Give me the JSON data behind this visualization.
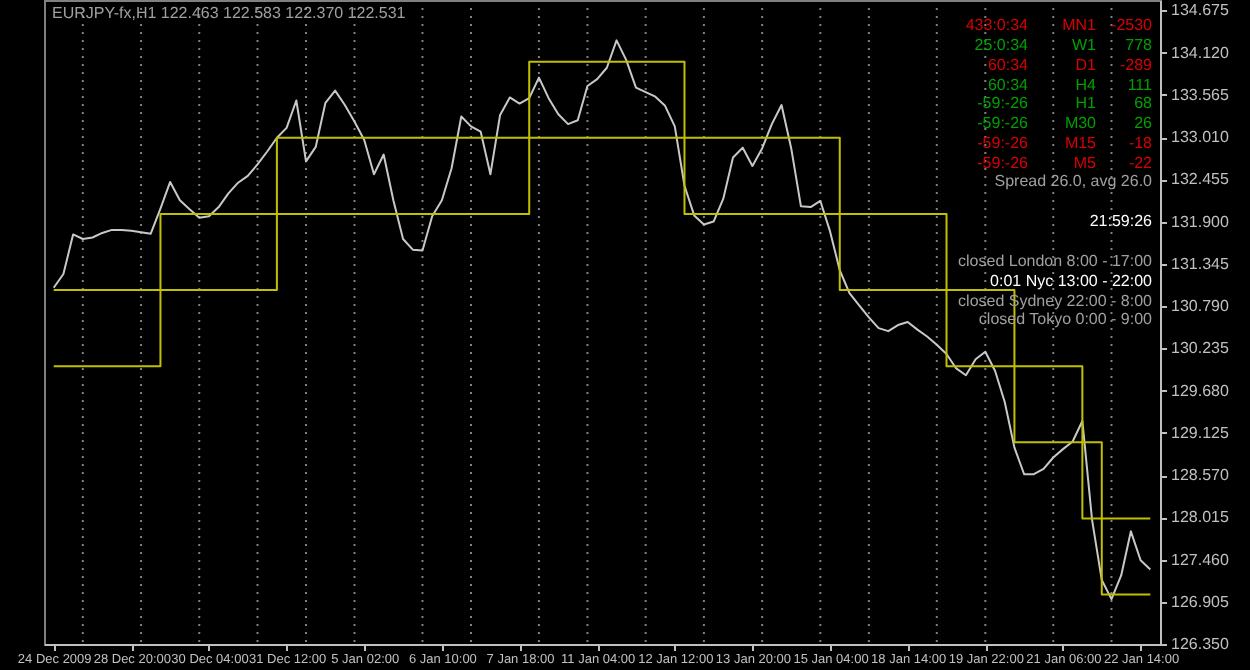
{
  "chart_data": {
    "type": "line",
    "title": "EURJPY-fx,H1 122.463 122.583 122.370 122.531",
    "categories": [
      "24 Dec 2009",
      null,
      null,
      null,
      null,
      null,
      null,
      null,
      "28 Dec 20:00",
      null,
      null,
      null,
      null,
      null,
      null,
      null,
      "30 Dec 04:00",
      null,
      null,
      null,
      null,
      null,
      null,
      null,
      "31 Dec 12:00",
      null,
      null,
      null,
      null,
      null,
      null,
      null,
      "5 Jan 02:00",
      null,
      null,
      null,
      null,
      null,
      null,
      null,
      "6 Jan 10:00",
      null,
      null,
      null,
      null,
      null,
      null,
      null,
      "7 Jan 18:00",
      null,
      null,
      null,
      null,
      null,
      null,
      null,
      "11 Jan 04:00",
      null,
      null,
      null,
      null,
      null,
      null,
      null,
      "12 Jan 12:00",
      null,
      null,
      null,
      null,
      null,
      null,
      null,
      "13 Jan 20:00",
      null,
      null,
      null,
      null,
      null,
      null,
      null,
      "15 Jan 04:00",
      null,
      null,
      null,
      null,
      null,
      null,
      null,
      "18 Jan 14:00",
      null,
      null,
      null,
      null,
      null,
      null,
      null,
      "19 Jan 22:00",
      null,
      null,
      null,
      null,
      null,
      null,
      null,
      "21 Jan 06:00",
      null,
      null,
      null,
      null,
      null,
      null,
      null,
      "22 Jan 14:00",
      null
    ],
    "ylim": [
      126.35,
      134.81
    ],
    "yticks": [
      {
        "value": 126.35,
        "label": "126.350"
      },
      126.905,
      {
        "value": 127.46,
        "label": "127.460"
      },
      128.015,
      {
        "value": 128.57,
        "label": "128.570"
      },
      129.125,
      {
        "value": 129.68,
        "label": "129.680"
      },
      130.235,
      {
        "value": 130.79,
        "label": "130.790"
      },
      131.345,
      {
        "value": 131.9,
        "label": "131.900"
      },
      132.455,
      {
        "value": 133.01,
        "label": "133.010"
      },
      133.565,
      {
        "value": 134.12,
        "label": "134.120"
      },
      134.675
    ],
    "series": [
      {
        "type": "line",
        "color": "#c8c8c8",
        "values": [
          131.03,
          131.21,
          131.73,
          131.67,
          131.69,
          131.75,
          131.79,
          131.79,
          131.78,
          131.76,
          131.74,
          132.07,
          132.42,
          132.18,
          132.06,
          131.95,
          131.97,
          132.09,
          132.27,
          132.41,
          132.5,
          132.65,
          132.82,
          133.0,
          133.13,
          133.49,
          132.69,
          132.88,
          133.46,
          133.62,
          133.43,
          133.21,
          132.97,
          132.52,
          132.78,
          132.18,
          131.67,
          131.53,
          131.52,
          131.97,
          132.18,
          132.6,
          133.28,
          133.15,
          133.08,
          132.52,
          133.3,
          133.53,
          133.45,
          133.52,
          133.79,
          133.52,
          133.31,
          133.18,
          133.23,
          133.68,
          133.77,
          133.92,
          134.28,
          134.02,
          133.66,
          133.6,
          133.54,
          133.42,
          133.15,
          132.37,
          131.98,
          131.86,
          131.9,
          132.2,
          132.74,
          132.87,
          132.63,
          132.86,
          133.18,
          133.43,
          132.86,
          132.1,
          132.09,
          132.17,
          131.77,
          131.26,
          130.96,
          130.8,
          130.64,
          130.5,
          130.46,
          130.54,
          130.58,
          130.48,
          130.39,
          130.28,
          130.16,
          129.97,
          129.88,
          130.09,
          130.19,
          129.94,
          129.53,
          128.93,
          128.58,
          128.58,
          128.65,
          128.8,
          128.91,
          129.01,
          129.28,
          127.98,
          127.19,
          126.94,
          127.25,
          127.83,
          127.45,
          127.33
        ]
      },
      {
        "type": "step",
        "color": "#c0c000",
        "values": [
          131,
          131,
          131,
          131,
          131,
          131,
          131,
          131,
          131,
          131,
          131,
          131,
          131,
          131,
          131,
          131,
          131,
          131,
          131,
          131,
          131,
          131,
          131,
          133,
          133,
          133,
          133,
          133,
          133,
          133,
          133,
          133,
          133,
          133,
          133,
          133,
          133,
          133,
          133,
          133,
          133,
          133,
          133,
          133,
          133,
          133,
          133,
          133,
          133,
          133,
          133,
          133,
          133,
          133,
          133,
          133,
          133,
          133,
          133,
          133,
          133,
          133,
          133,
          133,
          133,
          133,
          133,
          133,
          133,
          133,
          133,
          133,
          133,
          133,
          133,
          133,
          133,
          133,
          133,
          133,
          133,
          131,
          131,
          131,
          131,
          131,
          131,
          131,
          131,
          131,
          131,
          131,
          131,
          131,
          131,
          131,
          131,
          131,
          131,
          129,
          129,
          129,
          129,
          129,
          129,
          129,
          129,
          129,
          127,
          127,
          127,
          127,
          127,
          127
        ]
      },
      {
        "type": "step",
        "color": "#c0c000",
        "values": [
          130,
          130,
          130,
          130,
          130,
          130,
          130,
          130,
          130,
          130,
          130,
          132,
          132,
          132,
          132,
          132,
          132,
          132,
          132,
          132,
          132,
          132,
          132,
          132,
          132,
          132,
          132,
          132,
          132,
          132,
          132,
          132,
          132,
          132,
          132,
          132,
          132,
          132,
          132,
          132,
          132,
          132,
          132,
          132,
          132,
          132,
          132,
          132,
          132,
          134,
          134,
          134,
          134,
          134,
          134,
          134,
          134,
          134,
          134,
          134,
          134,
          134,
          134,
          134,
          134,
          132,
          132,
          132,
          132,
          132,
          132,
          132,
          132,
          132,
          132,
          132,
          132,
          132,
          132,
          132,
          132,
          132,
          132,
          132,
          132,
          132,
          132,
          132,
          132,
          132,
          132,
          132,
          130,
          130,
          130,
          130,
          130,
          130,
          130,
          130,
          130,
          130,
          130,
          130,
          130,
          130,
          128,
          128,
          128,
          128,
          128,
          128,
          128,
          128
        ]
      }
    ],
    "annotations": [
      "433:0:34",
      "MN1",
      "-2530",
      "25:0:34",
      "W1",
      "778",
      "60:34",
      "D1",
      "-289",
      "60:34",
      "H4",
      "111",
      "-59:-26",
      "H1",
      "68",
      "-59:-26",
      "M30",
      "26",
      "-59:-26",
      "M15",
      "-18",
      "-59:-26",
      "M5",
      "-22",
      "Spread 26.0, avg 26.0",
      "21:59:26",
      "closed London 8:00 - 17:00",
      "0:01 Nyc 13:00 - 22:00",
      "closed Sydney 22:00 - 8:00",
      "closed Tokyo 0:00 - 9:00"
    ],
    "grid": false
  }
}
